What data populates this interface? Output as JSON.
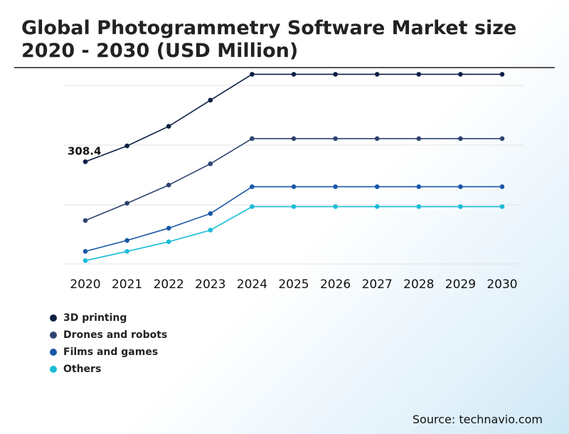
{
  "title": "Global Photogrammetry Software Market size 2020 - 2030 (USD Million)",
  "source": "Source: technavio.com",
  "chart_data": {
    "type": "line",
    "x": [
      "2020",
      "2021",
      "2022",
      "2023",
      "2024",
      "2025",
      "2026",
      "2027",
      "2028",
      "2029",
      "2030"
    ],
    "ylim": [
      0,
      560
    ],
    "grid": true,
    "legend_position": "bottom-left",
    "annotations": [
      {
        "series": "3D printing",
        "x": "2020",
        "label": "308.4"
      }
    ],
    "series": [
      {
        "name": "3D printing",
        "color": "#0b1f44",
        "values": [
          308.4,
          356,
          415,
          494,
          572,
          572,
          572,
          572,
          572,
          572,
          572
        ]
      },
      {
        "name": "Drones and robots",
        "color": "#2e4470",
        "values": [
          131,
          183,
          238,
          302,
          378,
          378,
          378,
          378,
          378,
          378,
          378
        ]
      },
      {
        "name": "Films and games",
        "color": "#1757a6",
        "values": [
          38,
          71,
          108,
          152,
          233,
          233,
          233,
          233,
          233,
          233,
          233
        ]
      },
      {
        "name": "Others",
        "color": "#1bbbd8",
        "values": [
          10,
          38,
          67,
          102,
          173,
          173,
          173,
          173,
          173,
          173,
          173
        ]
      }
    ]
  }
}
